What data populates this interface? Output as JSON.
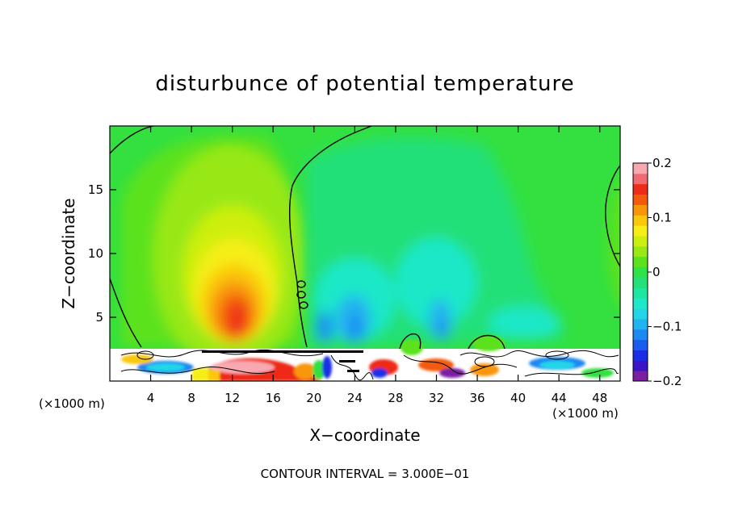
{
  "chart_data": {
    "type": "heatmap",
    "title": "disturbunce of potential temperature",
    "xlabel": "X−coordinate",
    "ylabel": "Z−coordinate",
    "x_unit_left": "(×1000 m)",
    "x_unit_right": "(×1000 m)",
    "xlim": [
      0,
      50
    ],
    "ylim": [
      0,
      20
    ],
    "x_ticks": [
      4,
      8,
      12,
      16,
      20,
      24,
      28,
      32,
      36,
      40,
      44,
      48
    ],
    "x_tick_labels": [
      "4",
      "8",
      "12",
      "16",
      "20",
      "24",
      "28",
      "32",
      "36",
      "40",
      "44",
      "48"
    ],
    "y_ticks": [
      5,
      10,
      15
    ],
    "y_tick_labels": [
      "5",
      "10",
      "15"
    ],
    "colorbar": {
      "range": [
        -0.2,
        0.2
      ],
      "levels": [
        -0.2,
        -0.18,
        -0.16,
        -0.14,
        -0.12,
        -0.1,
        -0.08,
        -0.06,
        -0.04,
        -0.02,
        0,
        0.02,
        0.04,
        0.06,
        0.08,
        0.1,
        0.12,
        0.14,
        0.16,
        0.18,
        0.2
      ],
      "colors": [
        "#7a1fa2",
        "#3b14c8",
        "#1a2ee6",
        "#1b5cf0",
        "#1e88f2",
        "#22b4f0",
        "#22d6e8",
        "#1fe8c8",
        "#1de6a0",
        "#23e078",
        "#2ee24a",
        "#5ce21c",
        "#98e812",
        "#cdef10",
        "#f6ee14",
        "#fac80a",
        "#f8960a",
        "#f45a0c",
        "#ee2a18",
        "#f06a72",
        "#f8a8b0"
      ],
      "tick_values": [
        -0.2,
        -0.1,
        0,
        0.1,
        0.2
      ],
      "tick_labels": [
        "−0.2",
        "−0.1",
        "0",
        "0.1",
        "0.2"
      ]
    },
    "features": [
      {
        "kind": "positive-blob",
        "x": 12,
        "z": 5,
        "peak": 0.12
      },
      {
        "kind": "negative-cells",
        "x": [
          21,
          25,
          32
        ],
        "z": 4,
        "peak": -0.08
      },
      {
        "kind": "positive-near-surface",
        "x": 12,
        "z": 1,
        "peak": 0.18
      },
      {
        "kind": "zero-contour",
        "x_start": 20,
        "x_top": 27
      }
    ],
    "annotation": "CONTOUR INTERVAL = 3.000E−01"
  }
}
